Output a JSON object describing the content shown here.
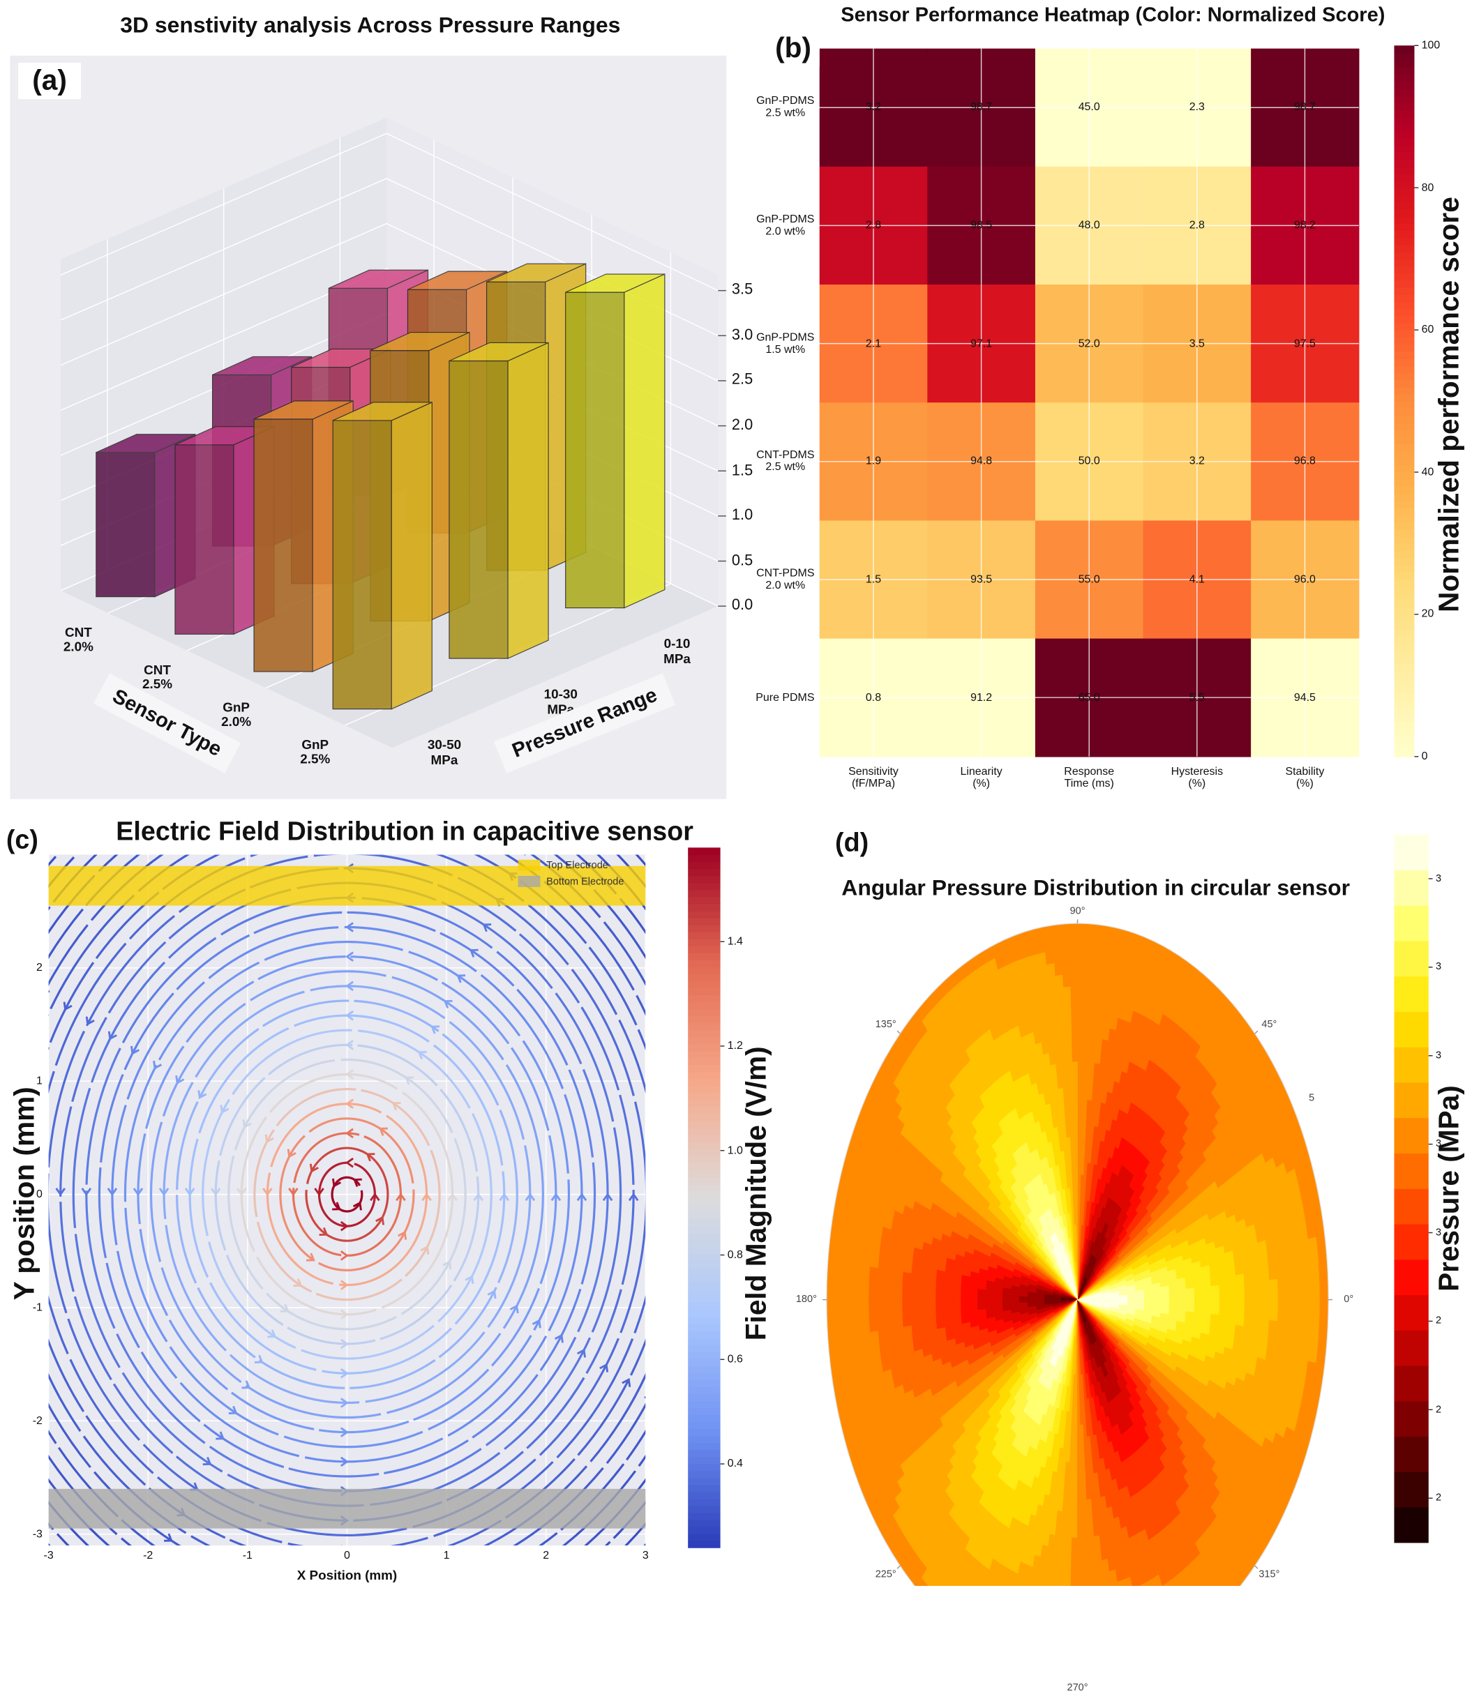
{
  "chart_data": [
    {
      "type": "bar3d",
      "title": "3D senstivity analysis Across Pressure Ranges",
      "panel_label": "(a)",
      "x_label": "Sensor Type",
      "y_label": "Pressure Range",
      "categories": [
        "CNT\n2.0%",
        "CNT\n2.5%",
        "GnP\n2.0%",
        "GnP\n2.5%"
      ],
      "series": [
        {
          "name": "30-50\nMPa",
          "values": [
            1.6,
            2.1,
            2.8,
            3.2
          ]
        },
        {
          "name": "10-30\nMPa",
          "values": [
            1.9,
            2.4,
            3.0,
            3.3
          ]
        },
        {
          "name": "0-10\nMPa",
          "values": [
            2.3,
            2.7,
            3.2,
            3.5
          ]
        }
      ],
      "zlim": [
        0,
        3.5
      ],
      "zticks": [
        {
          "value": 0,
          "label": "0.0"
        },
        0.5,
        {
          "value": 1,
          "label": "1.0"
        },
        1.5,
        {
          "value": 2,
          "label": "2.0"
        },
        2.5,
        {
          "value": 3,
          "label": "3.0"
        },
        3.5
      ],
      "colormap": "plasma"
    },
    {
      "type": "heatmap",
      "title": "Sensor Performance Heatmap (Color: Normalized Score)",
      "panel_label": "(b)",
      "rows": [
        "GnP-PDMS\n2.5 wt%",
        "GnP-PDMS\n2.0 wt%",
        "GnP-PDMS\n1.5 wt%",
        "CNT-PDMS\n2.5 wt%",
        "CNT-PDMS\n2.0 wt%",
        "Pure PDMS"
      ],
      "columns": [
        "Sensitivity\n(fF/MPa)",
        "Linearity\n(%)",
        "Response\nTime (ms)",
        "Hysteresis\n(%)",
        "Stability\n(%)"
      ],
      "values": [
        [
          3.2,
          98.7,
          45.0,
          2.3,
          98.7
        ],
        [
          2.8,
          98.5,
          48.0,
          2.8,
          98.2
        ],
        [
          2.1,
          97.1,
          52.0,
          3.5,
          97.5
        ],
        [
          1.9,
          94.8,
          50.0,
          3.2,
          96.8
        ],
        [
          1.5,
          93.5,
          55.0,
          4.1,
          96.0
        ],
        [
          0.8,
          91.2,
          65.0,
          5.5,
          94.5
        ]
      ],
      "value_labels": [
        [
          "3.2",
          "98.7",
          "45.0",
          "2.3",
          "98.7"
        ],
        [
          "2.8",
          "98.5",
          "48.0",
          "2.8",
          "98.2"
        ],
        [
          "2.1",
          "97.1",
          "52.0",
          "3.5",
          "97.5"
        ],
        [
          "1.9",
          "94.8",
          "50.0",
          "3.2",
          "96.8"
        ],
        [
          "1.5",
          "93.5",
          "55.0",
          "4.1",
          "96.0"
        ],
        [
          "0.8",
          "91.2",
          "65.0",
          "5.5",
          "94.5"
        ]
      ],
      "colorbar_label": "Normalized performance score",
      "clim": [
        0,
        100
      ],
      "cticks": [
        0,
        20,
        40,
        60,
        80,
        100
      ],
      "colormap": "YlOrRd",
      "grid": true
    },
    {
      "type": "streamplot",
      "title": "Electric Field Distribution in capacitive sensor",
      "panel_label": "(c)",
      "x_label": "X Position (mm)",
      "y_label": "Y position (mm)",
      "xlim": [
        -3,
        3
      ],
      "ylim": [
        -3.1,
        3
      ],
      "xticks": [
        -3,
        -2,
        -1,
        0,
        1,
        2,
        3
      ],
      "yticks": [
        -3,
        -2,
        -1,
        0,
        1,
        2
      ],
      "electrodes": [
        {
          "name": "Top Electrode",
          "color": "#f7d000",
          "y": [
            2.55,
            2.9
          ]
        },
        {
          "name": "Bottom Electrode",
          "color": "#a8a8a8",
          "y": [
            -2.95,
            -2.6
          ]
        }
      ],
      "colorbar_label": "Field Magnitude (V/m)",
      "clim": [
        0.24,
        1.58
      ],
      "cticks": [
        0.4,
        0.6,
        0.8,
        {
          "value": 1,
          "label": "1.0"
        },
        1.2,
        1.4
      ],
      "colormap": "coolwarm",
      "grid": true
    },
    {
      "type": "polar_contour",
      "title": "Angular Pressure Distribution in circular sensor",
      "panel_label": "(d)",
      "theta_ticks": [
        {
          "value": 0,
          "label": "0°"
        },
        {
          "value": 45,
          "label": "45°"
        },
        {
          "value": 90,
          "label": "90°"
        },
        {
          "value": 135,
          "label": "135°"
        },
        {
          "value": 180,
          "label": "180°"
        },
        {
          "value": 225,
          "label": "225°"
        },
        {
          "value": 270,
          "label": "270°"
        },
        {
          "value": 315,
          "label": "315°"
        }
      ],
      "rlim": [
        0,
        5
      ],
      "rticks": [
        5
      ],
      "colorbar_label": "Pressure (MPa)",
      "clim": [
        1.9,
        3.5
      ],
      "cticks": [
        2,
        {
          "value": 2.2,
          "label": "2"
        },
        {
          "value": 2.4,
          "label": "2"
        },
        {
          "value": 2.6,
          "label": "3"
        },
        {
          "value": 2.8,
          "label": "3"
        },
        3,
        {
          "value": 3.2,
          "label": "3"
        },
        {
          "value": 3.4,
          "label": "3"
        }
      ],
      "colormap": "hot",
      "levels": 20
    }
  ]
}
